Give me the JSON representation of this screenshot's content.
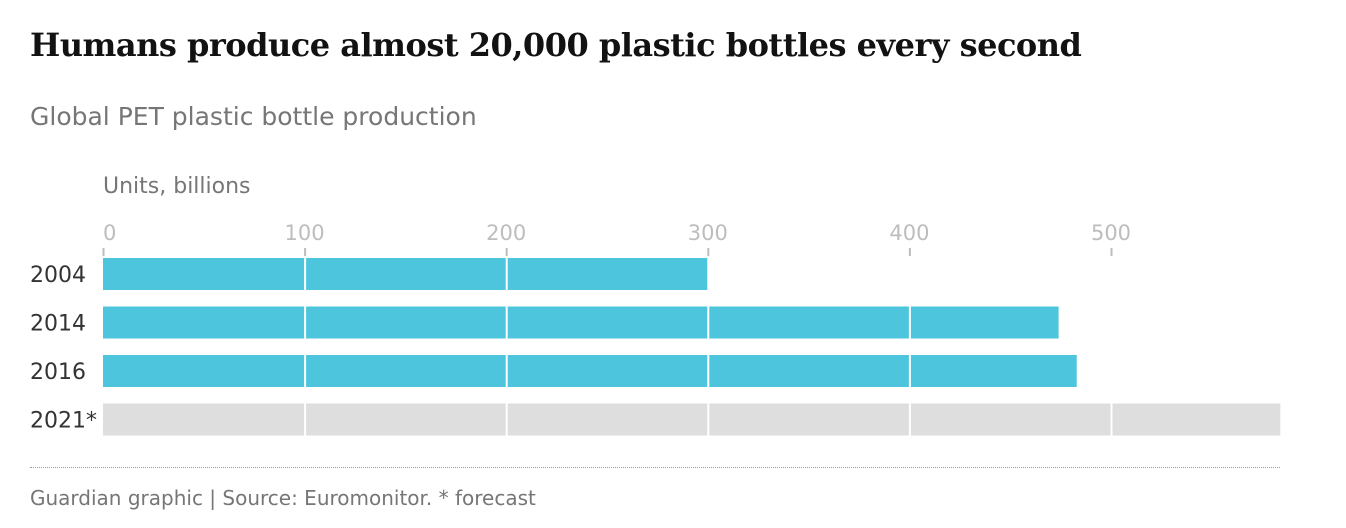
{
  "header": {
    "title": "Humans produce almost 20,000 plastic bottles every second",
    "subtitle": "Global PET plastic bottle production",
    "units_label": "Units, billions"
  },
  "footer": {
    "source": "Guardian graphic | Source: Euromonitor. * forecast"
  },
  "colors": {
    "actual": "#4dc6dd",
    "forecast": "#dedede",
    "gridline": "#ffffff",
    "tick": "#bdbdbd"
  },
  "chart_data": {
    "type": "bar",
    "orientation": "horizontal",
    "categories": [
      "2004",
      "2014",
      "2016",
      "2021*"
    ],
    "values": [
      300,
      474,
      483,
      584
    ],
    "forecast": [
      false,
      false,
      false,
      true
    ],
    "xlim": [
      0,
      584
    ],
    "xticks": [
      0,
      100,
      200,
      300,
      400,
      500
    ],
    "xtick_labels": [
      "0",
      "100",
      "200",
      "300",
      "400",
      "500"
    ],
    "grid": true
  }
}
